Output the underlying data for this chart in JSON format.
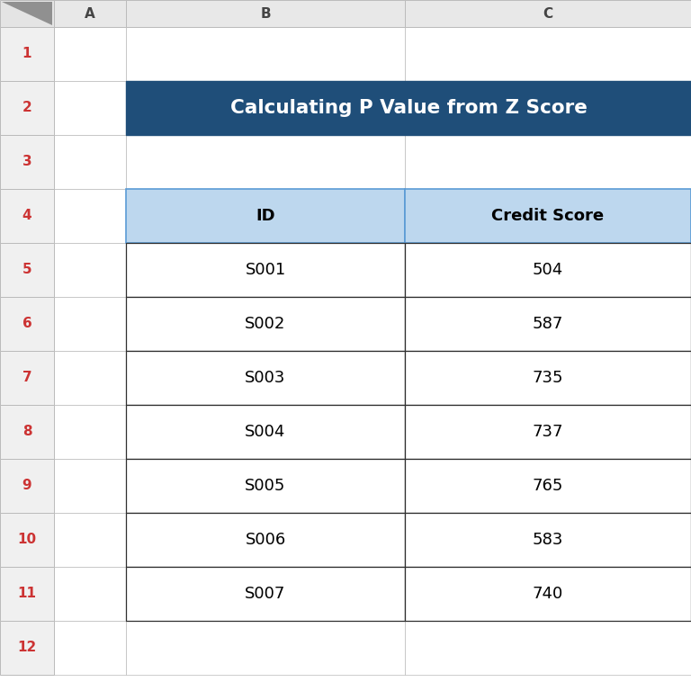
{
  "title": "Calculating P Value from Z Score",
  "title_bg": "#1F4E79",
  "title_fg": "#FFFFFF",
  "header_bg": "#BDD7EE",
  "header_fg": "#000000",
  "col_headers": [
    "ID",
    "Credit Score"
  ],
  "rows": [
    [
      "S001",
      "504"
    ],
    [
      "S002",
      "587"
    ],
    [
      "S003",
      "735"
    ],
    [
      "S004",
      "737"
    ],
    [
      "S005",
      "765"
    ],
    [
      "S006",
      "583"
    ],
    [
      "S007",
      "740"
    ]
  ],
  "row_labels": [
    "1",
    "2",
    "3",
    "4",
    "5",
    "6",
    "7",
    "8",
    "9",
    "10",
    "11",
    "12"
  ],
  "col_labels": [
    "A",
    "B",
    "C"
  ],
  "grid_line_color": "#5B9BD5",
  "cell_border_color": "#2F2F2F",
  "bg_color": "#FFFFFF",
  "col_header_bg": "#E8E8E8",
  "row_header_bg": "#F0F0F0",
  "watermark_color": "#5B9BD5",
  "watermark_sub_color": "#999999",
  "corner_triangle_color": "#909090",
  "spreadsheet_border": "#BBBBBB"
}
